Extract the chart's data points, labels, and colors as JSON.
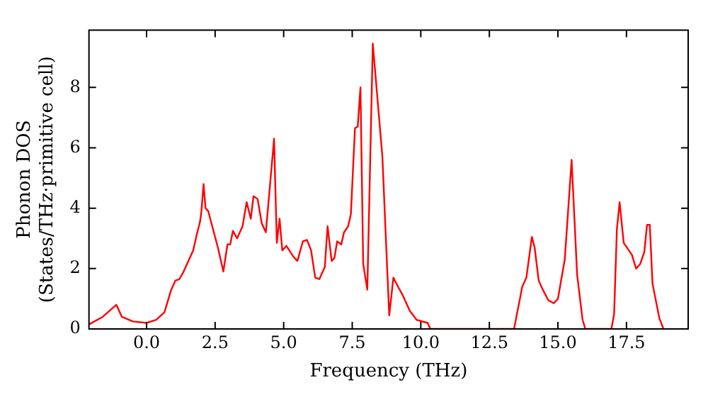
{
  "chart_data": {
    "type": "line",
    "xlabel": "Frequency (THz)",
    "ylabel": "Phonon DOS\n(States/THz·primitive cell)",
    "x": [
      -2.1,
      -1.6,
      -1.1,
      -0.9,
      -0.5,
      0,
      0.35,
      0.65,
      0.9,
      1.05,
      1.2,
      1.35,
      1.55,
      1.7,
      1.85,
      1.95,
      2.0,
      2.08,
      2.15,
      2.25,
      2.35,
      2.6,
      2.8,
      2.95,
      3.05,
      3.15,
      3.3,
      3.5,
      3.65,
      3.8,
      3.9,
      4.05,
      4.2,
      4.35,
      4.65,
      4.75,
      4.85,
      4.95,
      5.1,
      5.35,
      5.5,
      5.7,
      5.85,
      6.0,
      6.15,
      6.3,
      6.5,
      6.6,
      6.75,
      6.85,
      6.95,
      7.1,
      7.2,
      7.35,
      7.45,
      7.6,
      7.7,
      7.8,
      7.9,
      8.05,
      8.25,
      8.6,
      8.75,
      8.85,
      9.0,
      9.2,
      9.35,
      9.6,
      9.85,
      10.25,
      10.35,
      13.4,
      13.7,
      13.85,
      14.05,
      14.15,
      14.3,
      14.45,
      14.65,
      14.85,
      15.0,
      15.25,
      15.5,
      15.7,
      15.9,
      16.0,
      16.95,
      17.05,
      17.15,
      17.25,
      17.4,
      17.7,
      17.85,
      18.0,
      18.15,
      18.25,
      18.35,
      18.45,
      18.7,
      18.85
    ],
    "series": [
      {
        "color": "#ff0000",
        "values": [
          0.15,
          0.4,
          0.8,
          0.4,
          0.25,
          0.2,
          0.3,
          0.55,
          1.3,
          1.6,
          1.65,
          1.9,
          2.3,
          2.6,
          3.2,
          3.55,
          3.9,
          4.8,
          4.0,
          3.9,
          3.55,
          2.7,
          1.9,
          2.8,
          2.8,
          3.25,
          3.0,
          3.4,
          4.2,
          3.65,
          4.4,
          4.3,
          3.5,
          3.2,
          6.3,
          2.85,
          3.65,
          2.6,
          2.75,
          2.4,
          2.25,
          2.9,
          2.95,
          2.6,
          1.7,
          1.65,
          2.05,
          3.4,
          2.25,
          2.35,
          2.9,
          2.8,
          3.2,
          3.4,
          3.8,
          6.65,
          6.7,
          8.0,
          2.15,
          1.3,
          9.45,
          5.7,
          2.5,
          0.45,
          1.7,
          1.35,
          1.1,
          0.6,
          0.3,
          0.2,
          0,
          0,
          1.4,
          1.7,
          3.05,
          2.7,
          1.6,
          1.3,
          0.95,
          0.85,
          1.0,
          2.3,
          5.6,
          1.8,
          0.3,
          0,
          0,
          0.5,
          3.3,
          4.2,
          2.85,
          2.45,
          2.0,
          2.15,
          2.55,
          3.45,
          3.45,
          1.5,
          0.35,
          0
        ]
      }
    ],
    "xlim": [
      -2.1,
      19.75
    ],
    "ylim": [
      0,
      9.9
    ],
    "xticks": [
      {
        "value": 0,
        "label": "0.0"
      },
      {
        "value": 2.5,
        "label": "2.5"
      },
      {
        "value": 5,
        "label": "5.0"
      },
      {
        "value": 7.5,
        "label": "7.5"
      },
      {
        "value": 10,
        "label": "10.0"
      },
      {
        "value": 12.5,
        "label": "12.5"
      },
      {
        "value": 15,
        "label": "15.0"
      },
      {
        "value": 17.5,
        "label": "17.5"
      }
    ],
    "yticks": [
      0,
      2,
      4,
      6,
      8
    ],
    "grid": false,
    "legend": false,
    "marker": "none",
    "line_style": "solid"
  }
}
